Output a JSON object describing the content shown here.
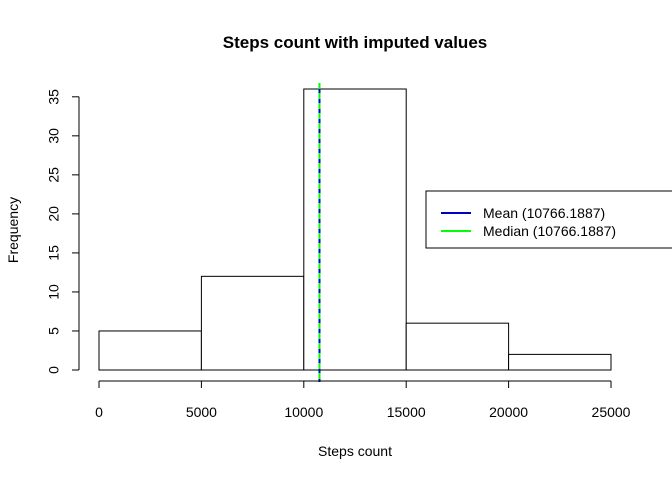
{
  "chart_data": {
    "type": "bar",
    "title": "Steps count with imputed values",
    "xlabel": "Steps count",
    "ylabel": "Frequency",
    "bins": [
      {
        "start": 0,
        "end": 5000,
        "count": 5
      },
      {
        "start": 5000,
        "end": 10000,
        "count": 12
      },
      {
        "start": 10000,
        "end": 15000,
        "count": 36
      },
      {
        "start": 15000,
        "end": 20000,
        "count": 6
      },
      {
        "start": 20000,
        "end": 25000,
        "count": 2
      }
    ],
    "xlim": [
      0,
      25000
    ],
    "ylim": [
      0,
      36
    ],
    "x_ticks": [
      0,
      5000,
      10000,
      15000,
      20000,
      25000
    ],
    "y_ticks": [
      0,
      5,
      10,
      15,
      20,
      25,
      30,
      35
    ],
    "grid": false,
    "legend_position": "right",
    "reference_lines": [
      {
        "name": "Mean (10766.1887)",
        "value": 10766.1887,
        "color": "#0000cc",
        "style": "solid"
      },
      {
        "name": "Median (10766.1887)",
        "value": 10766.1887,
        "color": "#00ff00",
        "style": "dashed"
      }
    ]
  }
}
